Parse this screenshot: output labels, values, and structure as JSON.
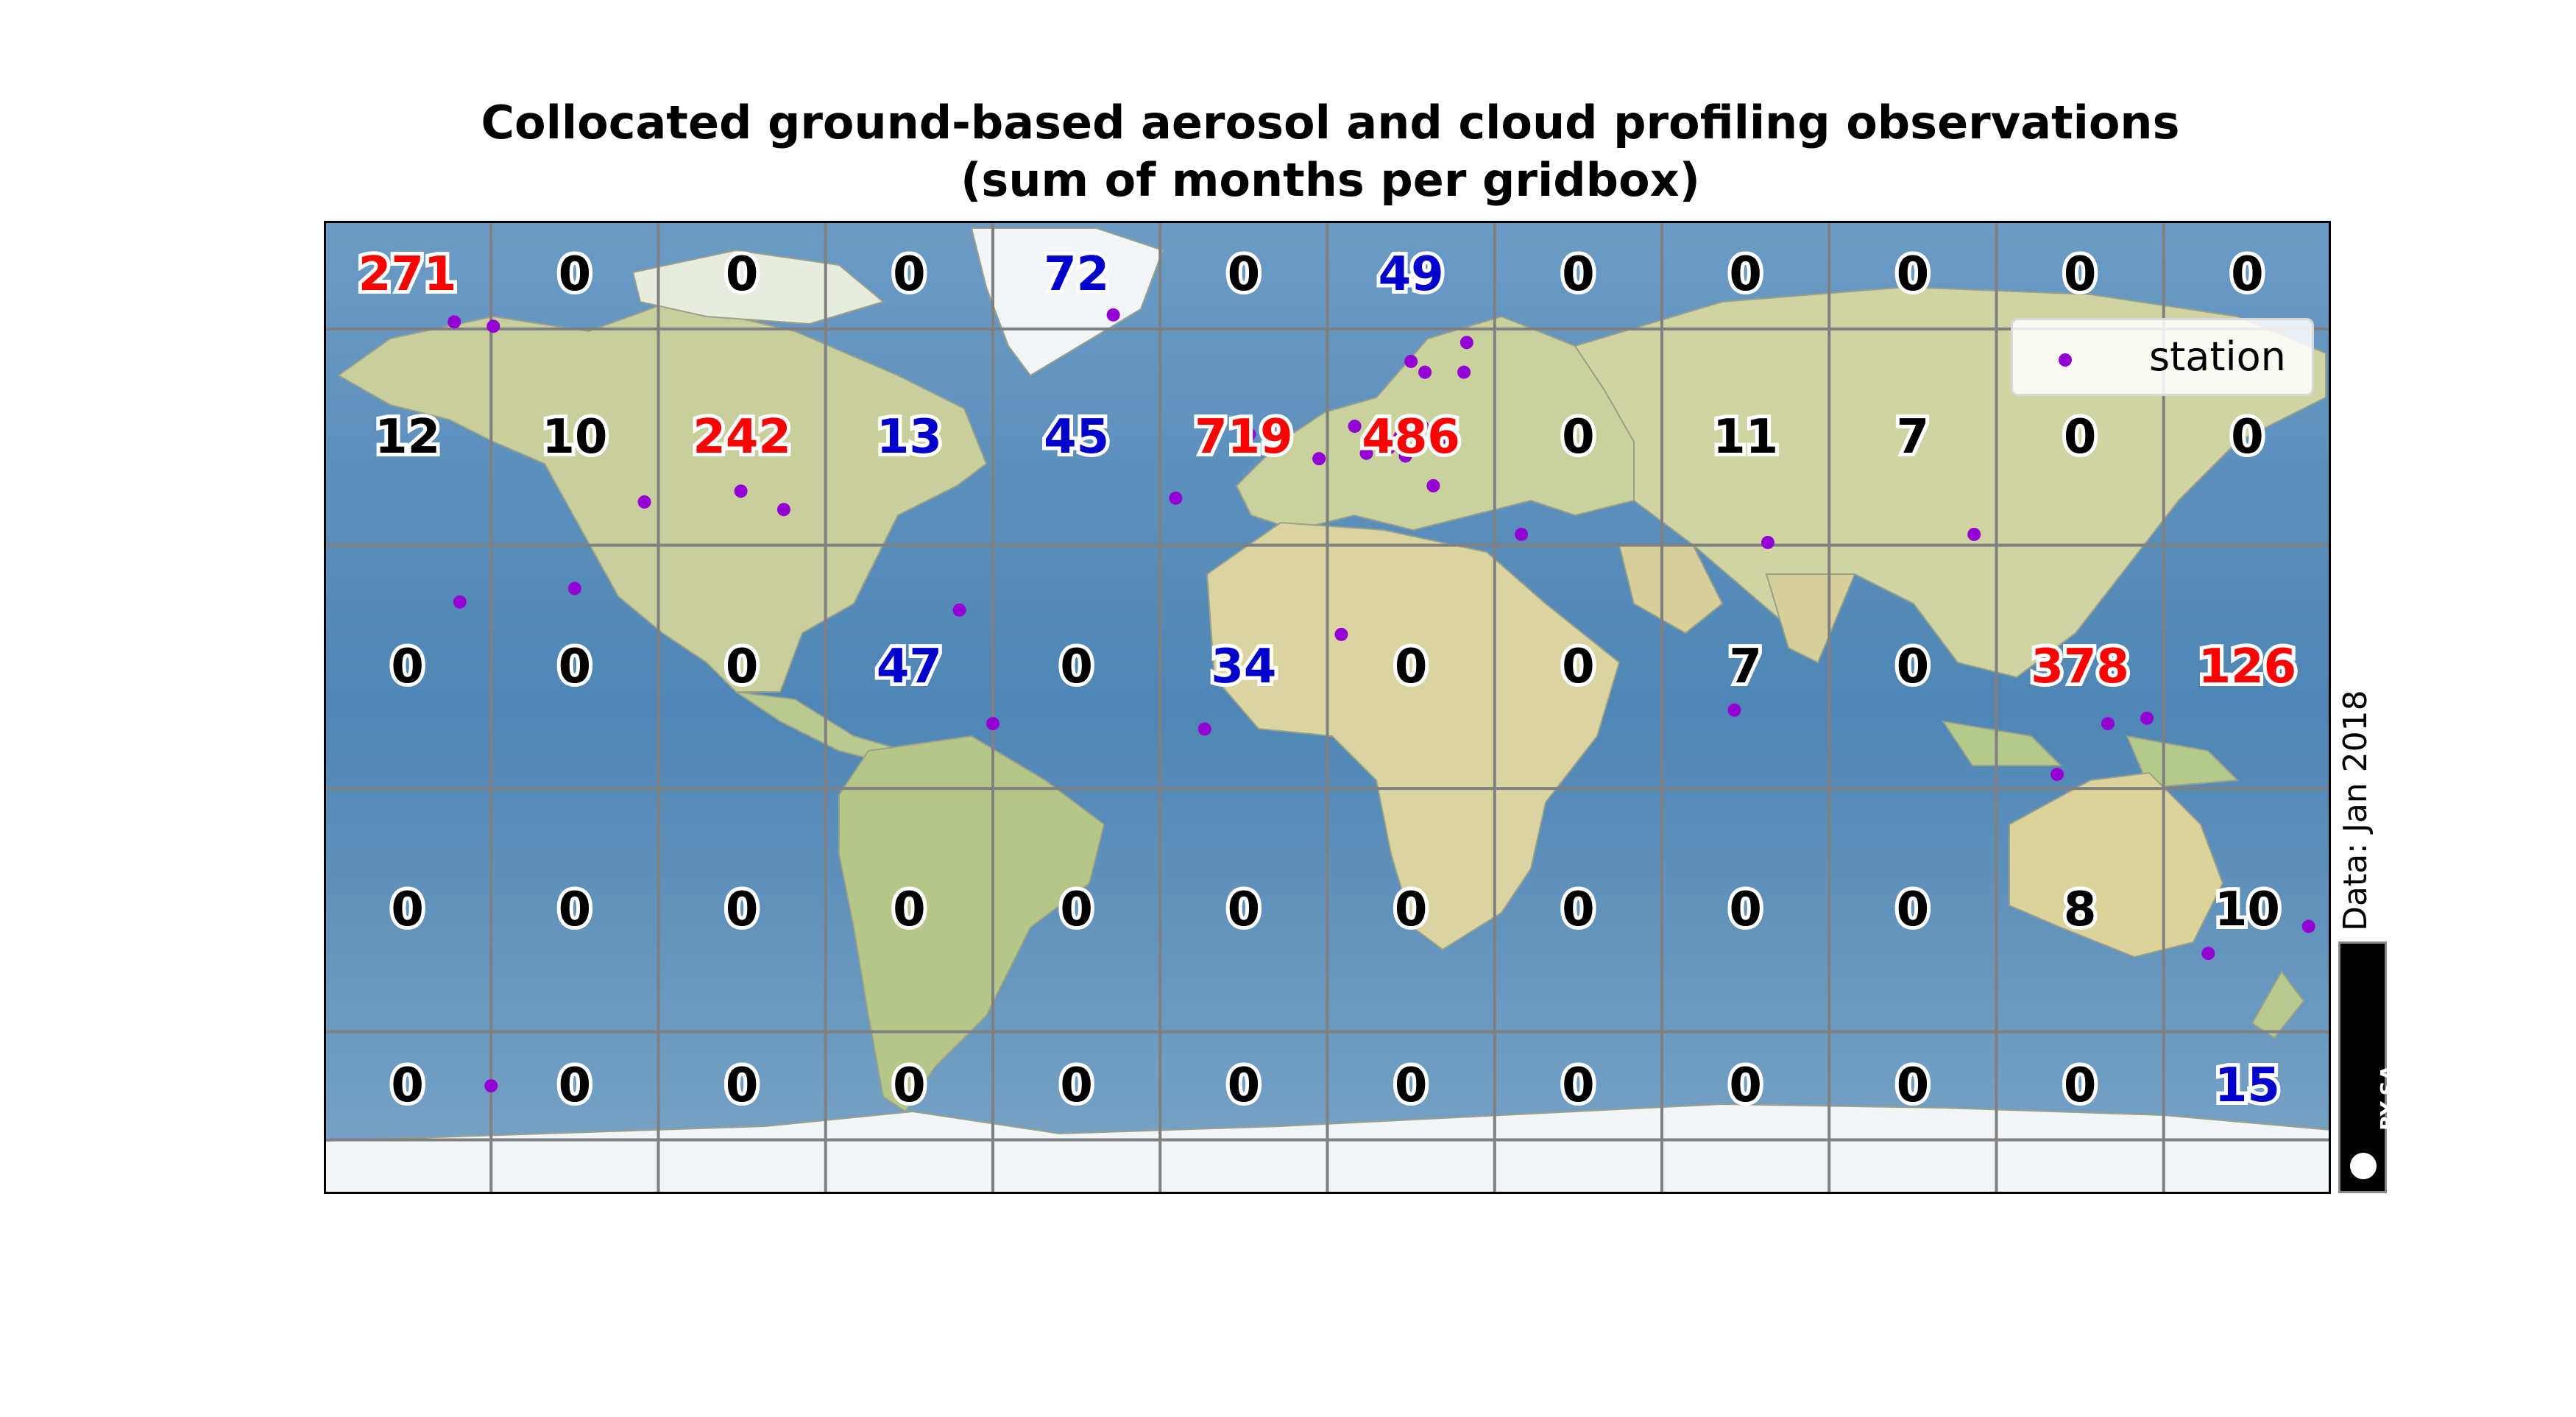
{
  "title": {
    "line1": "Collocated ground-based aerosol and cloud profiling observations",
    "line2": "(sum of months per gridbox)"
  },
  "legend": {
    "label": "station",
    "marker_color": "#9400d3"
  },
  "data_note": "Data: Jan 2018",
  "license": "BY-SA",
  "colors": {
    "high": "#ff0000",
    "medium": "#0000cc",
    "low": "#000000",
    "ocean": "#4f86b5",
    "ice": "#f2f5f8",
    "gridline": "#808080"
  },
  "grid": {
    "lon_edges": [
      -180,
      -150,
      -120,
      -90,
      -60,
      -30,
      0,
      30,
      60,
      90,
      120,
      150,
      180
    ],
    "lat_edges": [
      90,
      70,
      30,
      -15,
      -60,
      -80,
      -90
    ],
    "rows": [
      {
        "lat": 80,
        "cells": [
          "271",
          "0",
          "0",
          "0",
          "72",
          "0",
          "49",
          "0",
          "0",
          "0",
          "0",
          "0"
        ]
      },
      {
        "lat": 50,
        "cells": [
          "12",
          "10",
          "242",
          "13",
          "45",
          "719",
          "486",
          "0",
          "11",
          "7",
          "0",
          "0"
        ]
      },
      {
        "lat": 7.5,
        "cells": [
          "0",
          "0",
          "0",
          "47",
          "0",
          "34",
          "0",
          "0",
          "7",
          "0",
          "378",
          "126"
        ]
      },
      {
        "lat": -37.5,
        "cells": [
          "0",
          "0",
          "0",
          "0",
          "0",
          "0",
          "0",
          "0",
          "0",
          "0",
          "8",
          "10"
        ]
      },
      {
        "lat": -70,
        "cells": [
          "0",
          "0",
          "0",
          "0",
          "0",
          "0",
          "0",
          "0",
          "0",
          "0",
          "0",
          "15"
        ]
      }
    ],
    "cell_color_class": [
      [
        "high",
        "low",
        "low",
        "low",
        "medium",
        "low",
        "medium",
        "low",
        "low",
        "low",
        "low",
        "low"
      ],
      [
        "low",
        "low",
        "high",
        "medium",
        "medium",
        "high",
        "high",
        "low",
        "low",
        "low",
        "low",
        "low"
      ],
      [
        "low",
        "low",
        "low",
        "medium",
        "low",
        "medium",
        "low",
        "low",
        "low",
        "low",
        "high",
        "high"
      ],
      [
        "low",
        "low",
        "low",
        "low",
        "low",
        "low",
        "low",
        "low",
        "low",
        "low",
        "low",
        "low"
      ],
      [
        "low",
        "low",
        "low",
        "low",
        "low",
        "low",
        "low",
        "low",
        "low",
        "low",
        "low",
        "medium"
      ]
    ]
  },
  "stations": [
    [
      -156.6,
      71.3
    ],
    [
      -149.6,
      70.5
    ],
    [
      -38.4,
      72.6
    ],
    [
      11.9,
      78.9
    ],
    [
      -122.5,
      38.0
    ],
    [
      -97.5,
      36.6
    ],
    [
      -105.2,
      40.0
    ],
    [
      -155.6,
      19.5
    ],
    [
      -135.0,
      22.0
    ],
    [
      -27.2,
      38.7
    ],
    [
      -14.0,
      50.5
    ],
    [
      -1.5,
      46.0
    ],
    [
      4.9,
      52.0
    ],
    [
      7.0,
      47.0
    ],
    [
      11.0,
      48.0
    ],
    [
      13.0,
      50.0
    ],
    [
      14.0,
      46.5
    ],
    [
      17.0,
      52.0
    ],
    [
      20.0,
      49.0
    ],
    [
      19.0,
      41.0
    ],
    [
      15.0,
      64.0
    ],
    [
      25.0,
      67.5
    ],
    [
      17.5,
      62.0
    ],
    [
      24.5,
      62.0
    ],
    [
      34.8,
      32.0
    ],
    [
      79.0,
      30.5
    ],
    [
      116.0,
      32.0
    ],
    [
      2.5,
      13.5
    ],
    [
      -22.0,
      -4.0
    ],
    [
      -66.0,
      18.0
    ],
    [
      -60.0,
      -3.0
    ],
    [
      73.0,
      -0.5
    ],
    [
      130.9,
      -12.4
    ],
    [
      140.0,
      -3.0
    ],
    [
      147.0,
      -2.0
    ],
    [
      158.0,
      -45.5
    ],
    [
      176.0,
      -40.5
    ],
    [
      -150.0,
      -70.0
    ]
  ]
}
